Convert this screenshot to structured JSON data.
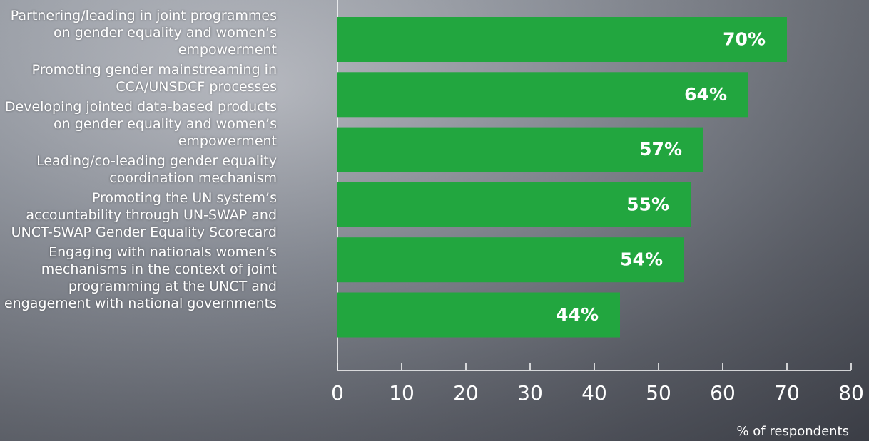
{
  "chart_data": {
    "type": "bar",
    "orientation": "horizontal",
    "categories": [
      "Partnering/leading in joint programmes on gender equality and women’s empowerment",
      "Promoting gender mainstreaming in CCA/UNSDCF processes",
      "Developing jointed data-based products on gender equality and women’s empowerment",
      "Leading/co-leading gender equality coordination mechanism",
      "Promoting the UN system’s accountability through UN-SWAP and UNCT-SWAP Gender Equality Scorecard",
      "Engaging with nationals women’s mechanisms in the context of joint programming at the UNCT and engagement with national governments"
    ],
    "values": [
      70,
      64,
      57,
      55,
      54,
      44
    ],
    "value_labels": [
      "70%",
      "64%",
      "57%",
      "55%",
      "54%",
      "44%"
    ],
    "color": "#22a63f",
    "xlim": [
      0,
      80
    ],
    "xticks": [
      0,
      10,
      20,
      30,
      40,
      50,
      60,
      70,
      80
    ],
    "xlabel": "% of respondents"
  }
}
